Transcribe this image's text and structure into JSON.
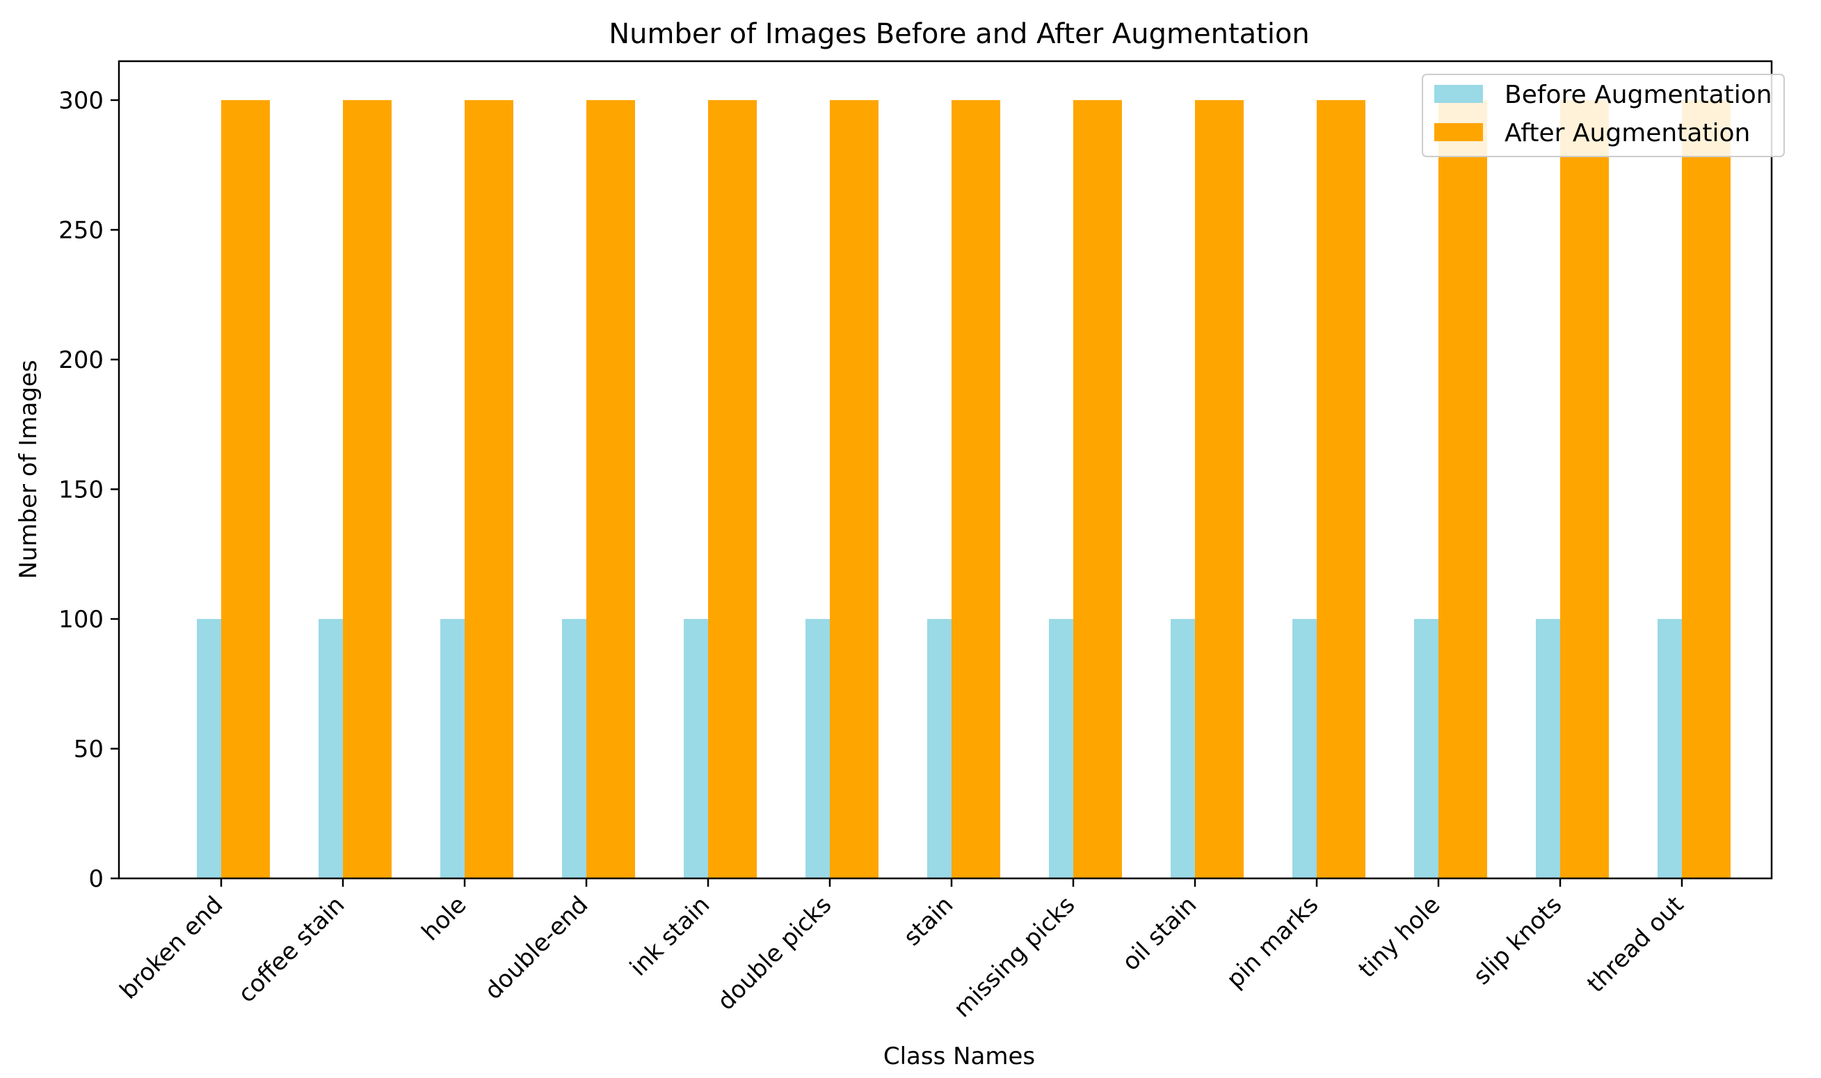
{
  "chart_data": {
    "type": "bar",
    "title": "Number of Images Before and After Augmentation",
    "xlabel": "Class Names",
    "ylabel": "Number of Images",
    "categories": [
      "broken end",
      "coffee stain",
      "hole",
      "double-end",
      "ink stain",
      "double picks",
      "stain",
      "missing picks",
      "oil stain",
      "pin marks",
      "tiny hole",
      "slip knots",
      "thread out"
    ],
    "series": [
      {
        "name": "Before Augmentation",
        "color": "#9ad9e6",
        "values": [
          100,
          100,
          100,
          100,
          100,
          100,
          100,
          100,
          100,
          100,
          100,
          100,
          100
        ]
      },
      {
        "name": "After Augmentation",
        "color": "#ffa500",
        "values": [
          300,
          300,
          300,
          300,
          300,
          300,
          300,
          300,
          300,
          300,
          300,
          300,
          300
        ]
      }
    ],
    "ylim": [
      0,
      315
    ],
    "yticks": [
      0,
      50,
      100,
      150,
      200,
      250,
      300
    ],
    "grid": false,
    "legend_position": "top-right"
  }
}
